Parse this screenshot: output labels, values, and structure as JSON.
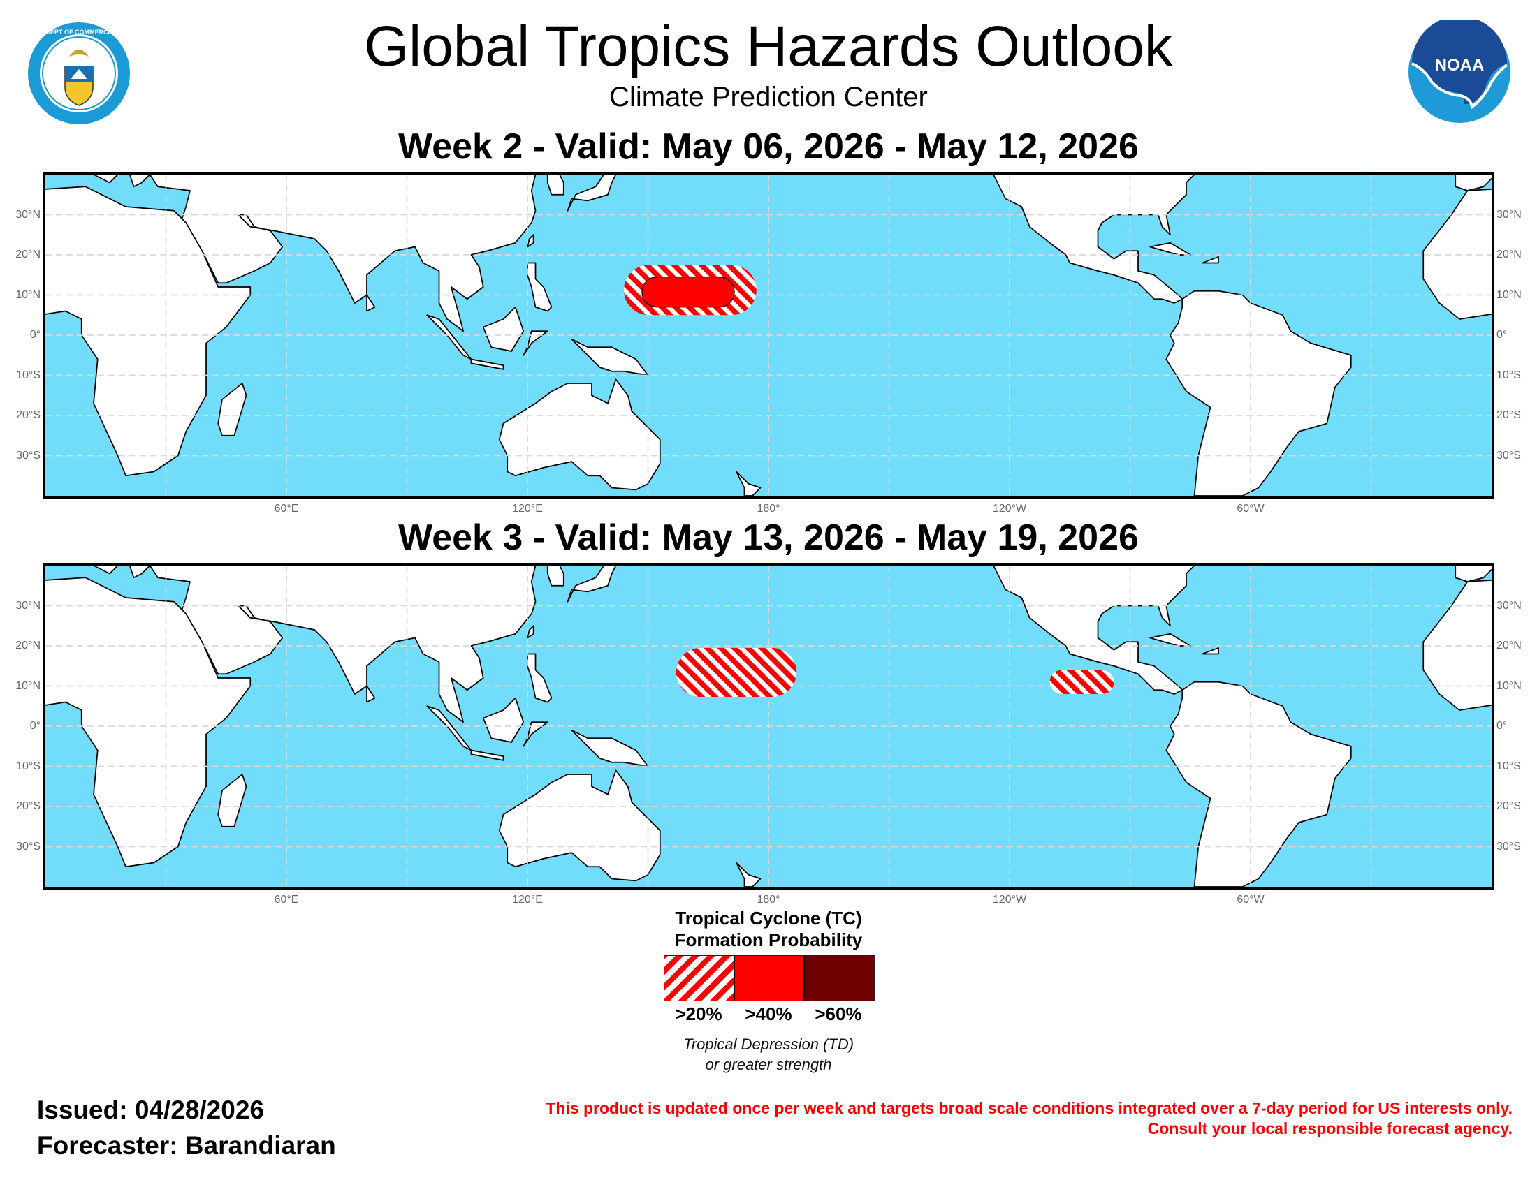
{
  "header": {
    "title": "Global Tropics Hazards Outlook",
    "subtitle": "Climate Prediction Center",
    "left_logo": {
      "name": "department-of-commerce-seal",
      "text": "DEPARTMENT OF COMMERCE · UNITED STATES OF AMERICA"
    },
    "right_logo": {
      "name": "noaa-logo",
      "text": "NOAA"
    }
  },
  "maps": [
    {
      "title": "Week 2 - Valid: May 06, 2026 - May 12, 2026",
      "hazards": [
        {
          "category": ">20%",
          "lon": [
            144,
            177
          ],
          "lat": [
            5,
            17.5
          ]
        },
        {
          "category": ">40%",
          "lon": [
            148.5,
            171.5
          ],
          "lat": [
            7,
            14.5
          ]
        }
      ]
    },
    {
      "title": "Week 3 - Valid: May 13, 2026 - May 19, 2026",
      "hazards": [
        {
          "category": ">20%",
          "lon": [
            157,
            187
          ],
          "lat": [
            7.3,
            19.5
          ]
        },
        {
          "category": ">20%",
          "lon": [
            250,
            266
          ],
          "lat": [
            8,
            14
          ]
        }
      ]
    }
  ],
  "map_extent": {
    "lon": [
      0,
      360
    ],
    "lat": [
      -40,
      40
    ]
  },
  "lat_labels": [
    {
      "lat": 30,
      "text": "30°N"
    },
    {
      "lat": 20,
      "text": "20°N"
    },
    {
      "lat": 10,
      "text": "10°N"
    },
    {
      "lat": 0,
      "text": "0°"
    },
    {
      "lat": -10,
      "text": "10°S"
    },
    {
      "lat": -20,
      "text": "20°S"
    },
    {
      "lat": -30,
      "text": "30°S"
    }
  ],
  "lon_labels": [
    {
      "lon": 60,
      "text": "60°E"
    },
    {
      "lon": 120,
      "text": "120°E"
    },
    {
      "lon": 180,
      "text": "180°"
    },
    {
      "lon": 240,
      "text": "120°W"
    },
    {
      "lon": 300,
      "text": "60°W"
    }
  ],
  "colors": {
    "ocean": "#72dcfb",
    "land": "#ffffff",
    "p20": "#ff0000",
    "p40": "#ff0000",
    "p60": "#6e0000",
    "grid": "#d9d9d9"
  },
  "legend": {
    "title_line1": "Tropical Cyclone (TC)",
    "title_line2": "Formation Probability",
    "items": [
      {
        "label": ">20%",
        "style": "hatched"
      },
      {
        "label": ">40%",
        "style": "solid"
      },
      {
        "label": ">60%",
        "style": "solid-dark"
      }
    ],
    "note_line1": "Tropical Depression (TD)",
    "note_line2": "or greater strength"
  },
  "footer": {
    "issued": "Issued: 04/28/2026",
    "forecaster": "Forecaster: Barandiaran",
    "disclaimer_line1": "This product is updated once per week and targets broad scale conditions integrated over a 7-day period for US interests only.",
    "disclaimer_line2": "Consult your local responsible forecast agency."
  }
}
